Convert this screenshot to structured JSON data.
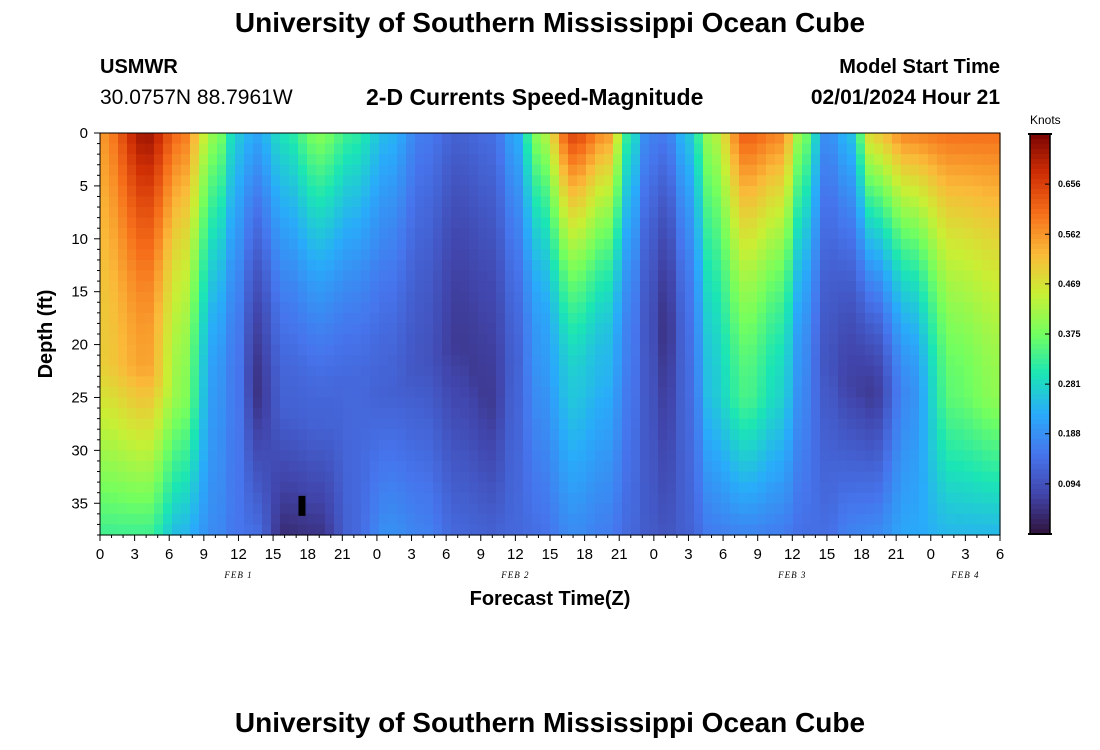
{
  "header": {
    "title": "University of Southern Mississippi Ocean Cube",
    "station": "USMWR",
    "coordinates": "30.0757N  88.7961W",
    "subtitle": "2-D Currents Speed-Magnitude",
    "model_start_label": "Model Start Time",
    "model_start_value": "02/01/2024 Hour 21"
  },
  "footer": {
    "title": "University of Southern Mississippi Ocean Cube"
  },
  "chart_data": {
    "type": "heatmap",
    "title": "2-D Currents Speed-Magnitude",
    "xlabel": "Forecast Time(Z)",
    "ylabel": "Depth (ft)",
    "x_ticks": [
      "0",
      "3",
      "6",
      "9",
      "12",
      "15",
      "18",
      "21",
      "0",
      "3",
      "6",
      "9",
      "12",
      "15",
      "18",
      "21",
      "0",
      "3",
      "6",
      "9",
      "12",
      "15",
      "18",
      "21",
      "0",
      "3",
      "6"
    ],
    "x_range_hours": [
      0,
      78
    ],
    "y_ticks": [
      0,
      5,
      10,
      15,
      20,
      25,
      30,
      35
    ],
    "y_range_ft": [
      0,
      38
    ],
    "date_labels": [
      {
        "label": "FEB 1",
        "hour": 12
      },
      {
        "label": "FEB 2",
        "hour": 36
      },
      {
        "label": "FEB 3",
        "hour": 60
      },
      {
        "label": "FEB 4",
        "hour": 75
      }
    ],
    "colorbar": {
      "unit": "Knots",
      "ticks": [
        0.094,
        0.188,
        0.281,
        0.375,
        0.469,
        0.562,
        0.656
      ],
      "range": [
        0.0,
        0.75
      ]
    },
    "columns": [
      {
        "hour": 0,
        "surface": 0.56,
        "bottom": 0.33,
        "mid_min": 0.5,
        "mid_depth": 22
      },
      {
        "hour": 4,
        "surface": 0.72,
        "bottom": 0.33,
        "mid_min": 0.55,
        "mid_depth": 22
      },
      {
        "hour": 7,
        "surface": 0.6,
        "bottom": 0.24,
        "mid_min": 0.4,
        "mid_depth": 25
      },
      {
        "hour": 10,
        "surface": 0.4,
        "bottom": 0.18,
        "mid_min": 0.2,
        "mid_depth": 25
      },
      {
        "hour": 12,
        "surface": 0.26,
        "bottom": 0.15,
        "mid_min": 0.15,
        "mid_depth": 22
      },
      {
        "hour": 13.5,
        "surface": 0.22,
        "bottom": 0.14,
        "mid_min": 0.05,
        "mid_depth": 25
      },
      {
        "hour": 16,
        "surface": 0.3,
        "bottom": 0.04,
        "mid_min": 0.12,
        "mid_depth": 26
      },
      {
        "hour": 19,
        "surface": 0.39,
        "bottom": 0.05,
        "mid_min": 0.12,
        "mid_depth": 28
      },
      {
        "hour": 22,
        "surface": 0.32,
        "bottom": 0.13,
        "mid_min": 0.13,
        "mid_depth": 25
      },
      {
        "hour": 25,
        "surface": 0.24,
        "bottom": 0.19,
        "mid_min": 0.12,
        "mid_depth": 25
      },
      {
        "hour": 28,
        "surface": 0.16,
        "bottom": 0.17,
        "mid_min": 0.1,
        "mid_depth": 22
      },
      {
        "hour": 31,
        "surface": 0.12,
        "bottom": 0.13,
        "mid_min": 0.06,
        "mid_depth": 20
      },
      {
        "hour": 34,
        "surface": 0.14,
        "bottom": 0.12,
        "mid_min": 0.06,
        "mid_depth": 26
      },
      {
        "hour": 36,
        "surface": 0.22,
        "bottom": 0.13,
        "mid_min": 0.12,
        "mid_depth": 22
      },
      {
        "hour": 38,
        "surface": 0.4,
        "bottom": 0.14,
        "mid_min": 0.2,
        "mid_depth": 20
      },
      {
        "hour": 41,
        "surface": 0.65,
        "bottom": 0.18,
        "mid_min": 0.26,
        "mid_depth": 25
      },
      {
        "hour": 44,
        "surface": 0.56,
        "bottom": 0.16,
        "mid_min": 0.24,
        "mid_depth": 22
      },
      {
        "hour": 46,
        "surface": 0.3,
        "bottom": 0.13,
        "mid_min": 0.16,
        "mid_depth": 20
      },
      {
        "hour": 47.5,
        "surface": 0.17,
        "bottom": 0.11,
        "mid_min": 0.1,
        "mid_depth": 18
      },
      {
        "hour": 49,
        "surface": 0.16,
        "bottom": 0.1,
        "mid_min": 0.05,
        "mid_depth": 19
      },
      {
        "hour": 51,
        "surface": 0.26,
        "bottom": 0.12,
        "mid_min": 0.14,
        "mid_depth": 20
      },
      {
        "hour": 53,
        "surface": 0.42,
        "bottom": 0.16,
        "mid_min": 0.26,
        "mid_depth": 25
      },
      {
        "hour": 56,
        "surface": 0.62,
        "bottom": 0.17,
        "mid_min": 0.34,
        "mid_depth": 25
      },
      {
        "hour": 59,
        "surface": 0.58,
        "bottom": 0.16,
        "mid_min": 0.28,
        "mid_depth": 25
      },
      {
        "hour": 61,
        "surface": 0.38,
        "bottom": 0.14,
        "mid_min": 0.18,
        "mid_depth": 22
      },
      {
        "hour": 63,
        "surface": 0.18,
        "bottom": 0.14,
        "mid_min": 0.1,
        "mid_depth": 22
      },
      {
        "hour": 65,
        "surface": 0.25,
        "bottom": 0.17,
        "mid_min": 0.07,
        "mid_depth": 24
      },
      {
        "hour": 67,
        "surface": 0.5,
        "bottom": 0.18,
        "mid_min": 0.06,
        "mid_depth": 25
      },
      {
        "hour": 70,
        "surface": 0.58,
        "bottom": 0.22,
        "mid_min": 0.18,
        "mid_depth": 25
      },
      {
        "hour": 74,
        "surface": 0.6,
        "bottom": 0.24,
        "mid_min": 0.36,
        "mid_depth": 25
      },
      {
        "hour": 78,
        "surface": 0.6,
        "bottom": 0.24,
        "mid_min": 0.4,
        "mid_depth": 25
      }
    ]
  }
}
